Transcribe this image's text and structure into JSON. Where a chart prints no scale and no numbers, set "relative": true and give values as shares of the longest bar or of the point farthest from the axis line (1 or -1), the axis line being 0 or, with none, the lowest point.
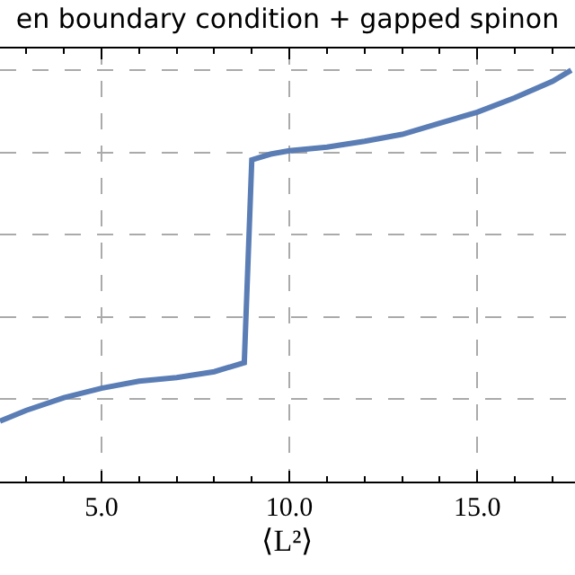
{
  "chart_data": {
    "type": "line",
    "title": "en boundary condition + gapped spinon",
    "xlabel": "⟨L²⟩",
    "relative": true,
    "x": [
      2.3,
      3,
      4,
      5,
      6,
      7,
      8,
      8.8,
      9.0,
      9.5,
      10,
      11,
      12,
      13,
      14,
      15,
      16,
      17,
      17.5
    ],
    "series": [
      {
        "color": "#5a7db5",
        "values": [
          0.147,
          0.173,
          0.204,
          0.227,
          0.244,
          0.253,
          0.267,
          0.289,
          0.782,
          0.796,
          0.804,
          0.813,
          0.827,
          0.844,
          0.871,
          0.898,
          0.933,
          0.973,
          1.0
        ]
      }
    ],
    "xlim": [
      2.3,
      17.6
    ],
    "xticks": [
      {
        "value": 3,
        "label": null
      },
      {
        "value": 4,
        "label": null
      },
      {
        "value": 5,
        "label": "5.0"
      },
      {
        "value": 6,
        "label": null
      },
      {
        "value": 7,
        "label": null
      },
      {
        "value": 8,
        "label": null
      },
      {
        "value": 9,
        "label": null
      },
      {
        "value": 10,
        "label": "10.0"
      },
      {
        "value": 11,
        "label": null
      },
      {
        "value": 12,
        "label": null
      },
      {
        "value": 13,
        "label": null
      },
      {
        "value": 14,
        "label": null
      },
      {
        "value": 15,
        "label": "15.0"
      },
      {
        "value": 16,
        "label": null
      },
      {
        "value": 17,
        "label": null
      }
    ],
    "grid": true,
    "line_style": "solid",
    "marker": "none",
    "tick_labels": "x"
  }
}
